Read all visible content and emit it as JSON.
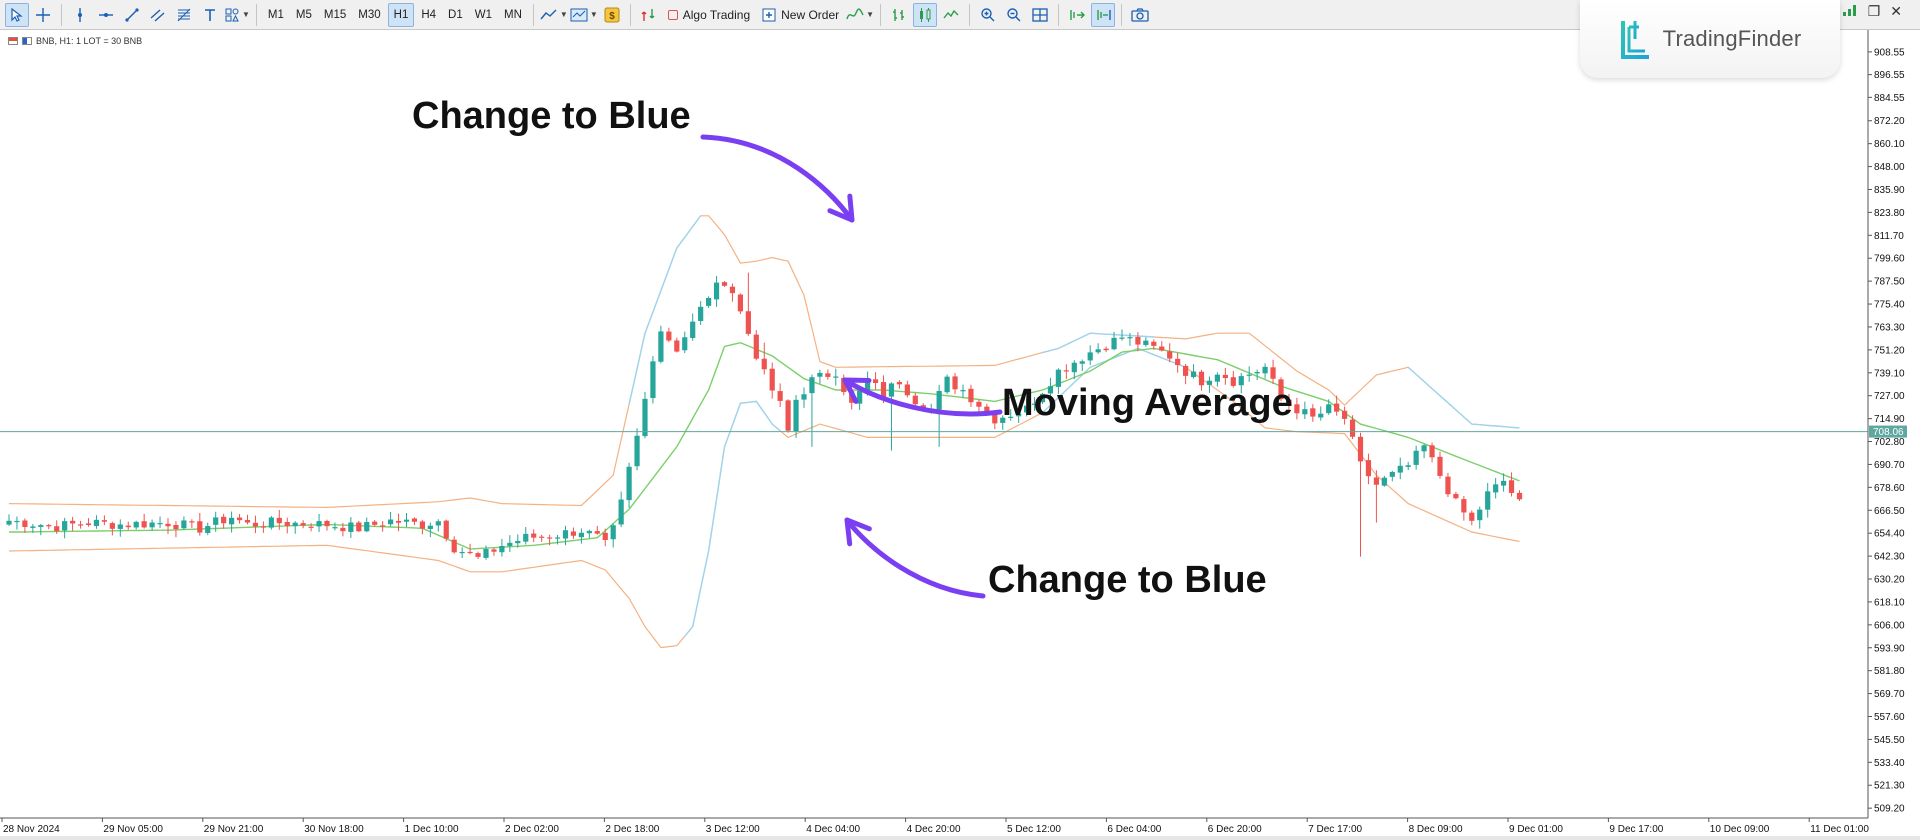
{
  "toolbar": {
    "timeframes": [
      "M1",
      "M5",
      "M15",
      "M30",
      "H1",
      "H4",
      "D1",
      "W1",
      "MN"
    ],
    "active_timeframe": "H1",
    "algo_trading_label": "Algo Trading",
    "new_order_label": "New Order"
  },
  "chart_info": {
    "symbol_line": "BNB, H1:  1 LOT = 30 BNB"
  },
  "logo": {
    "text": "TradingFinder"
  },
  "window_controls": {
    "minimize": "–",
    "restore": "❐",
    "close": "✕"
  },
  "annotations": {
    "top": "Change to Blue",
    "middle": "Moving Average",
    "bottom": "Change to Blue"
  },
  "colors": {
    "bull": "#26a69a",
    "bear": "#ef5350",
    "ma": "#7ccf6a",
    "upper_band": "#f4b183",
    "lower_band_expanding": "#9dd4f0",
    "arrow": "#7b3ff2",
    "current_price_line": "#5fa8a0"
  },
  "chart_data": {
    "type": "candlestick",
    "symbol": "BNB",
    "timeframe": "H1",
    "ylim": [
      504,
      918
    ],
    "y_ticks": [
      "908.55",
      "896.55",
      "884.55",
      "872.20",
      "860.10",
      "848.00",
      "835.90",
      "823.80",
      "811.70",
      "799.60",
      "787.50",
      "775.40",
      "763.30",
      "751.20",
      "739.10",
      "727.00",
      "714.90",
      "702.80",
      "690.70",
      "678.60",
      "666.50",
      "654.40",
      "642.30",
      "630.20",
      "618.10",
      "606.00",
      "593.90",
      "581.80",
      "569.70",
      "557.60",
      "545.50",
      "533.40",
      "521.30",
      "509.20"
    ],
    "current_price": "708.06",
    "x_ticks": [
      "28 Nov 2024",
      "29 Nov 05:00",
      "29 Nov 21:00",
      "30 Nov 18:00",
      "1 Dec 10:00",
      "2 Dec 02:00",
      "2 Dec 18:00",
      "3 Dec 12:00",
      "4 Dec 04:00",
      "4 Dec 20:00",
      "5 Dec 12:00",
      "6 Dec 04:00",
      "6 Dec 20:00",
      "7 Dec 17:00",
      "8 Dec 09:00",
      "9 Dec 01:00",
      "9 Dec 17:00",
      "10 Dec 09:00",
      "11 Dec 01:00"
    ],
    "close_anchors": [
      [
        0,
        661
      ],
      [
        6,
        658
      ],
      [
        10,
        660
      ],
      [
        14,
        659
      ],
      [
        20,
        660
      ],
      [
        24,
        657
      ],
      [
        28,
        663
      ],
      [
        30,
        659
      ],
      [
        34,
        660
      ],
      [
        40,
        659
      ],
      [
        44,
        657
      ],
      [
        48,
        661
      ],
      [
        52,
        659
      ],
      [
        54,
        661
      ],
      [
        56,
        647
      ],
      [
        59,
        641
      ],
      [
        62,
        648
      ],
      [
        65,
        652
      ],
      [
        68,
        653
      ],
      [
        72,
        656
      ],
      [
        74,
        652
      ],
      [
        75,
        648
      ],
      [
        76,
        656
      ],
      [
        77,
        670
      ],
      [
        78,
        688
      ],
      [
        79,
        705
      ],
      [
        80,
        725
      ],
      [
        81,
        748
      ],
      [
        82,
        762
      ],
      [
        84,
        752
      ],
      [
        86,
        765
      ],
      [
        88,
        780
      ],
      [
        90,
        788
      ],
      [
        91,
        782
      ],
      [
        93,
        760
      ],
      [
        95,
        738
      ],
      [
        97,
        722
      ],
      [
        98,
        708
      ],
      [
        99,
        725
      ],
      [
        101,
        735
      ],
      [
        104,
        740
      ],
      [
        106,
        722
      ],
      [
        108,
        735
      ],
      [
        110,
        728
      ],
      [
        112,
        735
      ],
      [
        114,
        725
      ],
      [
        116,
        720
      ],
      [
        118,
        735
      ],
      [
        120,
        730
      ],
      [
        124,
        715
      ],
      [
        128,
        720
      ],
      [
        130,
        730
      ],
      [
        132,
        740
      ],
      [
        134,
        745
      ],
      [
        136,
        750
      ],
      [
        140,
        758
      ],
      [
        144,
        752
      ],
      [
        146,
        748
      ],
      [
        148,
        740
      ],
      [
        150,
        735
      ],
      [
        152,
        740
      ],
      [
        154,
        735
      ],
      [
        158,
        742
      ],
      [
        160,
        725
      ],
      [
        162,
        720
      ],
      [
        164,
        715
      ],
      [
        166,
        720
      ],
      [
        168,
        715
      ],
      [
        170,
        690
      ],
      [
        172,
        680
      ],
      [
        176,
        690
      ],
      [
        178,
        700
      ],
      [
        180,
        685
      ],
      [
        182,
        670
      ],
      [
        184,
        660
      ],
      [
        186,
        675
      ],
      [
        188,
        682
      ],
      [
        190,
        670
      ]
    ],
    "ma_anchors": [
      [
        0,
        655
      ],
      [
        20,
        656
      ],
      [
        40,
        659
      ],
      [
        52,
        657
      ],
      [
        58,
        646
      ],
      [
        66,
        648
      ],
      [
        74,
        652
      ],
      [
        78,
        667
      ],
      [
        84,
        700
      ],
      [
        88,
        730
      ],
      [
        90,
        753
      ],
      [
        92,
        755
      ],
      [
        96,
        748
      ],
      [
        100,
        736
      ],
      [
        104,
        730
      ],
      [
        110,
        730
      ],
      [
        116,
        728
      ],
      [
        124,
        724
      ],
      [
        130,
        730
      ],
      [
        136,
        740
      ],
      [
        140,
        750
      ],
      [
        144,
        752
      ],
      [
        152,
        746
      ],
      [
        160,
        732
      ],
      [
        166,
        724
      ],
      [
        170,
        712
      ],
      [
        176,
        705
      ],
      [
        182,
        695
      ],
      [
        190,
        682
      ]
    ],
    "upper_anchors": [
      [
        0,
        670
      ],
      [
        40,
        668
      ],
      [
        54,
        671
      ],
      [
        58,
        673
      ],
      [
        62,
        670
      ],
      [
        72,
        669
      ],
      [
        76,
        685
      ],
      [
        80,
        760
      ],
      [
        84,
        805
      ],
      [
        87,
        822
      ],
      [
        88,
        822
      ],
      [
        90,
        812
      ],
      [
        92,
        797
      ],
      [
        94,
        798
      ],
      [
        96,
        800
      ],
      [
        98,
        798
      ],
      [
        100,
        780
      ],
      [
        102,
        745
      ],
      [
        104,
        742
      ],
      [
        124,
        743
      ],
      [
        132,
        752
      ],
      [
        136,
        760
      ],
      [
        144,
        758
      ],
      [
        148,
        757
      ],
      [
        152,
        760
      ],
      [
        156,
        760
      ],
      [
        162,
        740
      ],
      [
        166,
        730
      ],
      [
        168,
        722
      ],
      [
        172,
        738
      ],
      [
        176,
        742
      ],
      [
        184,
        712
      ],
      [
        190,
        710
      ]
    ],
    "lower_anchors": [
      [
        0,
        645
      ],
      [
        40,
        648
      ],
      [
        54,
        640
      ],
      [
        58,
        634
      ],
      [
        62,
        634
      ],
      [
        72,
        640
      ],
      [
        75,
        635
      ],
      [
        78,
        620
      ],
      [
        80,
        605
      ],
      [
        82,
        594
      ],
      [
        84,
        595
      ],
      [
        86,
        605
      ],
      [
        88,
        645
      ],
      [
        90,
        700
      ],
      [
        92,
        723
      ],
      [
        94,
        724
      ],
      [
        96,
        712
      ],
      [
        98,
        705
      ],
      [
        102,
        712
      ],
      [
        108,
        705
      ],
      [
        124,
        705
      ],
      [
        130,
        718
      ],
      [
        136,
        742
      ],
      [
        142,
        752
      ],
      [
        148,
        742
      ],
      [
        154,
        724
      ],
      [
        158,
        710
      ],
      [
        162,
        708
      ],
      [
        168,
        707
      ],
      [
        172,
        685
      ],
      [
        176,
        670
      ],
      [
        184,
        655
      ],
      [
        190,
        650
      ]
    ],
    "blue_segments": [
      {
        "band": "upper",
        "from": 78,
        "to": 87
      },
      {
        "band": "lower",
        "from": 85,
        "to": 97
      },
      {
        "band": "upper",
        "from": 130,
        "to": 144
      },
      {
        "band": "lower",
        "from": 130,
        "to": 148
      },
      {
        "band": "upper",
        "from": 176,
        "to": 190
      }
    ],
    "spikes": [
      [
        93,
        792
      ],
      [
        140,
        762
      ],
      [
        95,
        755
      ],
      [
        101,
        700
      ],
      [
        111,
        698
      ],
      [
        117,
        700
      ],
      [
        170,
        642
      ],
      [
        172,
        660
      ]
    ],
    "grid": false,
    "legend": "none"
  }
}
